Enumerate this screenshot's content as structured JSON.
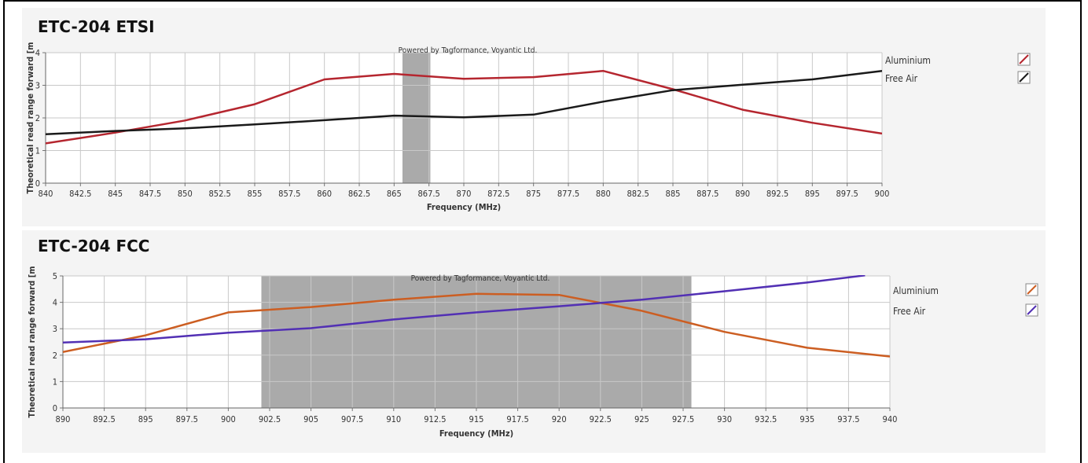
{
  "chart_data": [
    {
      "type": "line",
      "title": "ETC-204 ETSI",
      "watermark": "Powered by Tagformance, Voyantic Ltd.",
      "xlabel": "Frequency (MHz)",
      "ylabel": "Theoretical read range forward [m",
      "xlim": [
        840,
        900
      ],
      "ylim": [
        0,
        4
      ],
      "x_ticks": [
        "840",
        "842.5",
        "845",
        "847.5",
        "850",
        "852.5",
        "855",
        "857.5",
        "860",
        "862.5",
        "865",
        "867.5",
        "870",
        "872.5",
        "875",
        "877.5",
        "880",
        "882.5",
        "885",
        "887.5",
        "890",
        "892.5",
        "895",
        "897.5",
        "900"
      ],
      "y_ticks": [
        "0",
        "1",
        "2",
        "3",
        "4"
      ],
      "grid": true,
      "highlight_band": [
        865.6,
        867.6
      ],
      "legend_position": "right",
      "series": [
        {
          "name": "Aluminium",
          "color": "#b5262f",
          "x": [
            840,
            845,
            850,
            855,
            860,
            865,
            870,
            875,
            880,
            885,
            890,
            895,
            900
          ],
          "y": [
            1.22,
            1.55,
            1.92,
            2.42,
            3.18,
            3.35,
            3.2,
            3.25,
            3.44,
            2.88,
            2.25,
            1.85,
            1.52
          ]
        },
        {
          "name": "Free Air",
          "color": "#1a1a1a",
          "x": [
            840,
            845,
            850,
            855,
            860,
            865,
            870,
            875,
            880,
            885,
            890,
            895,
            900
          ],
          "y": [
            1.5,
            1.6,
            1.68,
            1.8,
            1.93,
            2.07,
            2.02,
            2.1,
            2.5,
            2.85,
            3.02,
            3.18,
            3.44
          ]
        }
      ]
    },
    {
      "type": "line",
      "title": "ETC-204 FCC",
      "watermark": "Powered by Tagformance, Voyantic Ltd.",
      "xlabel": "Frequency (MHz)",
      "ylabel": "Theoretical read range forward [m",
      "xlim": [
        890,
        940
      ],
      "ylim": [
        0,
        5
      ],
      "x_ticks": [
        "890",
        "892.5",
        "895",
        "897.5",
        "900",
        "902.5",
        "905",
        "907.5",
        "910",
        "912.5",
        "915",
        "917.5",
        "920",
        "922.5",
        "925",
        "927.5",
        "930",
        "932.5",
        "935",
        "937.5",
        "940"
      ],
      "y_ticks": [
        "0",
        "1",
        "2",
        "3",
        "4",
        "5"
      ],
      "grid": true,
      "highlight_band": [
        902,
        928
      ],
      "legend_position": "right",
      "series": [
        {
          "name": "Aluminium",
          "color": "#cc5e22",
          "x": [
            890,
            895,
            900,
            905,
            910,
            915,
            920,
            925,
            930,
            935,
            940
          ],
          "y": [
            2.12,
            2.75,
            3.62,
            3.82,
            4.1,
            4.32,
            4.28,
            3.68,
            2.88,
            2.28,
            1.95
          ]
        },
        {
          "name": "Free Air",
          "color": "#5230b4",
          "x": [
            890,
            895,
            900,
            905,
            910,
            915,
            920,
            925,
            930,
            935,
            938.5
          ],
          "y": [
            2.48,
            2.6,
            2.85,
            3.02,
            3.35,
            3.62,
            3.85,
            4.1,
            4.42,
            4.75,
            5.02
          ]
        }
      ]
    }
  ]
}
